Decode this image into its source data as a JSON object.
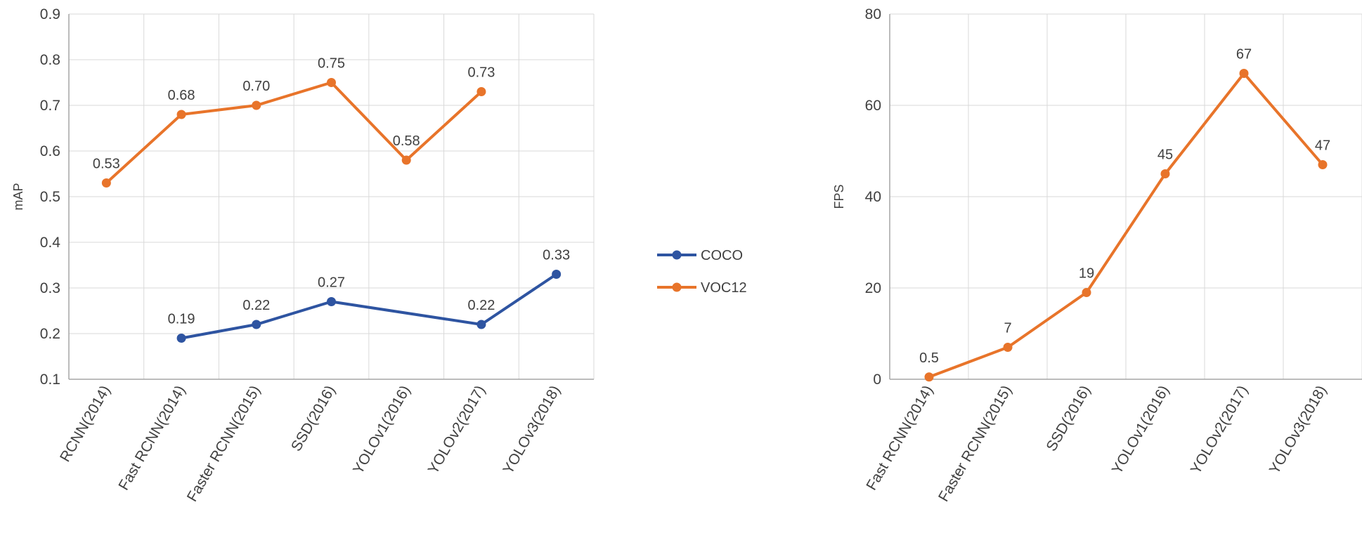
{
  "chart_data": [
    {
      "type": "line",
      "title": "",
      "xlabel": "",
      "ylabel": "mAP",
      "ylim": [
        0.1,
        0.9
      ],
      "yticks": [
        "0.1",
        "0.2",
        "0.3",
        "0.4",
        "0.5",
        "0.6",
        "0.7",
        "0.8",
        "0.9"
      ],
      "grid": true,
      "legend_position": "right",
      "categories": [
        "RCNN(2014)",
        "Fast RCNN(2014)",
        "Faster RCNN(2015)",
        "SSD(2016)",
        "YOLOv1(2016)",
        "YOLOv2(2017)",
        "YOLOv3(2018)"
      ],
      "series": [
        {
          "name": "COCO",
          "color": "#2E54A1",
          "values": [
            null,
            0.19,
            0.22,
            0.27,
            null,
            0.22,
            0.33
          ],
          "labels": [
            null,
            "0.19",
            "0.22",
            "0.27",
            null,
            "0.22",
            "0.33"
          ]
        },
        {
          "name": "VOC12",
          "color": "#E8742A",
          "values": [
            0.53,
            0.68,
            0.7,
            0.75,
            0.58,
            0.73,
            null
          ],
          "labels": [
            "0.53",
            "0.68",
            "0.70",
            "0.75",
            "0.58",
            "0.73",
            null
          ]
        }
      ]
    },
    {
      "type": "line",
      "title": "",
      "xlabel": "",
      "ylabel": "FPS",
      "ylim": [
        0,
        80
      ],
      "yticks": [
        "0",
        "20",
        "40",
        "60",
        "80"
      ],
      "grid": true,
      "categories": [
        "Fast RCNN(2014)",
        "Faster RCNN(2015)",
        "SSD(2016)",
        "YOLOv1(2016)",
        "YOLOv2(2017)",
        "YOLOv3(2018)"
      ],
      "series": [
        {
          "name": "FPS",
          "color": "#E8742A",
          "values": [
            0.5,
            7,
            19,
            45,
            67,
            47
          ],
          "labels": [
            "0.5",
            "7",
            "19",
            "45",
            "67",
            "47"
          ]
        }
      ]
    }
  ]
}
